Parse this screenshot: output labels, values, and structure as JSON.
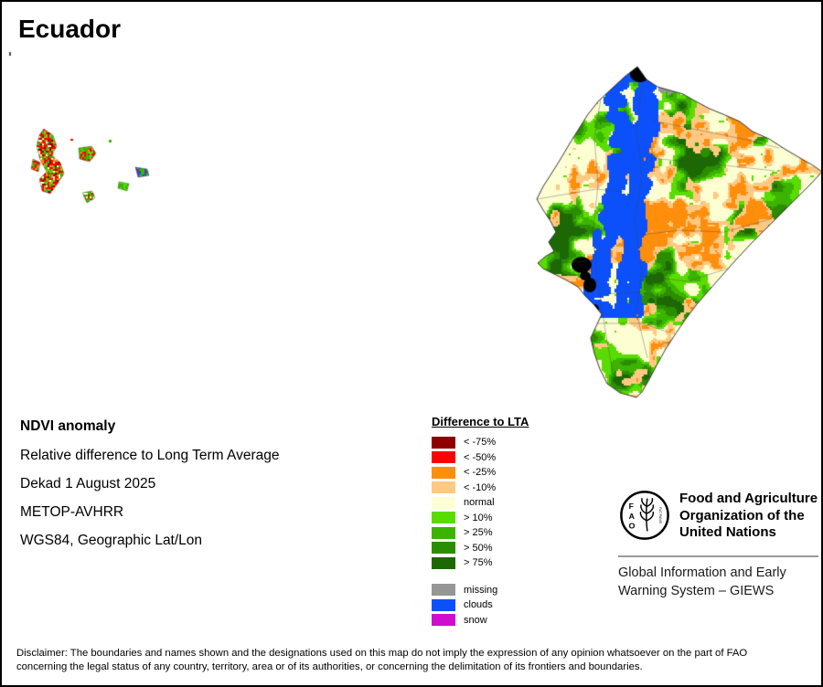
{
  "title": "Ecuador",
  "info": {
    "heading": "NDVI anomaly",
    "lines": [
      "Relative difference to Long Term Average",
      "Dekad 1 August 2025",
      "METOP-AVHRR",
      "WGS84, Geographic Lat/Lon"
    ]
  },
  "legend": {
    "title": "Difference to LTA",
    "classes": [
      {
        "label": "< -75%",
        "color": "#8E0000"
      },
      {
        "label": "< -50%",
        "color": "#FE0000"
      },
      {
        "label": "< -25%",
        "color": "#FF8E0D"
      },
      {
        "label": "< -10%",
        "color": "#FFC983"
      },
      {
        "label": "normal",
        "color": "#FDFED2"
      },
      {
        "label": "> 10%",
        "color": "#59DC00"
      },
      {
        "label": "> 25%",
        "color": "#3BB400"
      },
      {
        "label": "> 50%",
        "color": "#2B8E00"
      },
      {
        "label": "> 75%",
        "color": "#1C6903"
      }
    ],
    "extra_classes": [
      {
        "label": "missing",
        "color": "#969696"
      },
      {
        "label": "clouds",
        "color": "#0B50FB"
      },
      {
        "label": "snow",
        "color": "#CF0CCF"
      }
    ]
  },
  "fao": {
    "logo_letters": [
      "F",
      "A",
      "O"
    ],
    "logo_motto": "FIAT PANIS",
    "org_name": "Food and Agriculture Organization of the United Nations",
    "giews": "Global Information and Early Warning System – GIEWS"
  },
  "disclaimer": {
    "lines": [
      "Disclaimer: The boundaries and names shown and the designations used on this map do not imply the expression of any opinion whatsoever on the part of FAO",
      "concerning the legal status of any country, territory, area or of its authorities, or concerning the delimitation of its frontiers and boundaries."
    ]
  }
}
